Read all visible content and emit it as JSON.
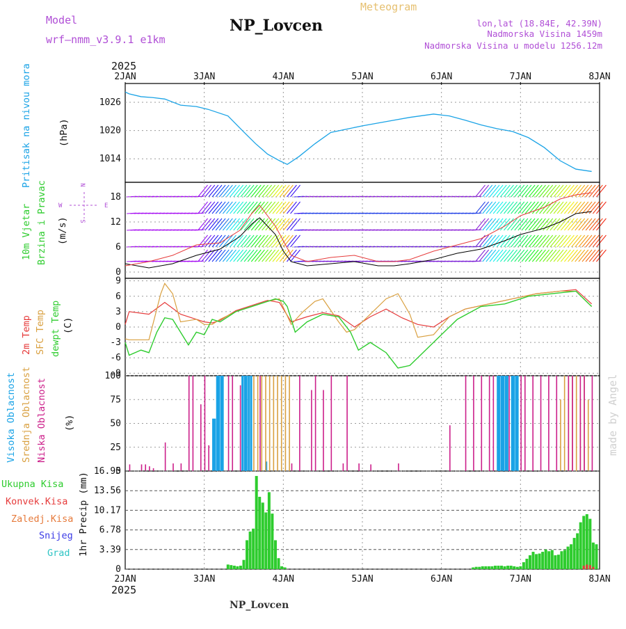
{
  "header": {
    "model_label": "Model",
    "model_name": "wrf–nmm_v3.9.1  e1km",
    "station": "NP_Lovcen",
    "product": "Meteogram",
    "coords": "lon,lat (18.84E, 42.39N)",
    "altitude": "Nadmorska Visina 1459m",
    "model_altitude": "Nadmorska Visina u modelu 1256.12m",
    "footer_station": "NP_Lovcen",
    "watermark": "made by Angel"
  },
  "time_axis": {
    "year": "2025",
    "ticks": [
      "2JAN",
      "3JAN",
      "4JAN",
      "5JAN",
      "6JAN",
      "7JAN",
      "8JAN"
    ]
  },
  "colors": {
    "pressure": "#1aa3e6",
    "temp2m": "#e63b3b",
    "sfc_temp": "#d9a040",
    "dewpt": "#2ecc2e",
    "cloud_high": "#1aa3e6",
    "cloud_mid": "#d9a040",
    "cloud_low": "#cc1f8a",
    "precip_total": "#2ecc2e",
    "precip_conv": "#e63b3b",
    "snow": "#3b3be6",
    "grad": "#2ec4c4",
    "model_text": "#b04fd6",
    "meteogram_text": "#e6c070",
    "wind_speed": "#000000",
    "gust": "#e63b3b"
  },
  "chart_data": [
    {
      "id": "pressure",
      "type": "line",
      "labels": [
        "Pritisak na nivou mora",
        "(hPa)"
      ],
      "yticks": [
        1014,
        1020,
        1026
      ],
      "ylim": [
        1009,
        1030
      ],
      "x": [
        0,
        0.05,
        0.2,
        0.35,
        0.5,
        0.7,
        0.9,
        1.05,
        1.3,
        1.5,
        1.65,
        1.8,
        1.95,
        2.05,
        2.2,
        2.4,
        2.6,
        2.8,
        3.0,
        3.3,
        3.6,
        3.9,
        4.1,
        4.3,
        4.5,
        4.7,
        4.9,
        5.1,
        5.3,
        5.5,
        5.7,
        5.9
      ],
      "values": [
        1028.2,
        1027.8,
        1027.2,
        1027.0,
        1026.7,
        1025.4,
        1025.1,
        1024.5,
        1023.1,
        1019.7,
        1017.2,
        1015.0,
        1013.6,
        1012.8,
        1014.5,
        1017.2,
        1019.6,
        1020.3,
        1021.0,
        1021.9,
        1022.8,
        1023.5,
        1023.1,
        1022.2,
        1021.2,
        1020.4,
        1019.8,
        1018.5,
        1016.4,
        1013.6,
        1011.8,
        1011.3
      ]
    },
    {
      "id": "wind",
      "type": "line",
      "labels": [
        "10m Vjetar",
        "Brzina i Pravac",
        "(m/s)"
      ],
      "compass": {
        "north": "N",
        "south": "S",
        "east": "E",
        "west": "W"
      },
      "yticks": [
        0,
        6,
        12,
        18
      ],
      "ylim": [
        -1.5,
        21.5
      ],
      "series": [
        {
          "x": [
            0,
            0.3,
            0.6,
            0.9,
            1.2,
            1.45,
            1.6,
            1.7,
            1.8,
            1.9,
            2.0,
            2.1,
            2.3,
            2.6,
            2.9,
            3.2,
            3.4,
            3.6,
            3.9,
            4.2,
            4.5,
            4.8,
            5.0,
            5.3,
            5.5,
            5.7,
            5.9
          ],
          "values": [
            2.0,
            1.0,
            2.0,
            4.0,
            5.5,
            8.5,
            11.5,
            13.0,
            11.0,
            9.0,
            5.0,
            2.5,
            1.5,
            2.0,
            2.5,
            1.5,
            1.5,
            2.0,
            3.0,
            4.5,
            5.5,
            7.5,
            9.0,
            10.5,
            12.0,
            14.0,
            14.5
          ]
        },
        {
          "x": [
            0,
            0.3,
            0.6,
            0.9,
            1.2,
            1.45,
            1.6,
            1.7,
            1.8,
            1.9,
            2.0,
            2.1,
            2.3,
            2.6,
            2.9,
            3.2,
            3.4,
            3.6,
            3.9,
            4.2,
            4.5,
            4.8,
            5.0,
            5.3,
            5.5,
            5.7,
            5.9
          ],
          "values": [
            1.5,
            2.5,
            4.0,
            6.5,
            7.0,
            10.0,
            14.0,
            16.0,
            13.5,
            11.0,
            7.5,
            4.0,
            2.5,
            3.5,
            4.0,
            2.5,
            2.5,
            3.0,
            5.0,
            6.5,
            8.0,
            11.0,
            13.5,
            15.5,
            17.5,
            18.5,
            19.0
          ]
        }
      ]
    },
    {
      "id": "temperature",
      "type": "line",
      "labels": [
        "2m Temp",
        "SFC Temp",
        "dewpt Temp",
        "(C)"
      ],
      "yticks": [
        -9,
        -6,
        -3,
        0,
        3,
        6,
        9
      ],
      "ylim": [
        -9.5,
        9.5
      ],
      "series": [
        {
          "x": [
            0,
            0.05,
            0.3,
            0.5,
            0.7,
            0.9,
            1.0,
            1.1,
            1.2,
            1.4,
            1.6,
            1.8,
            1.95,
            2.1,
            2.3,
            2.5,
            2.7,
            2.9,
            3.1,
            3.3,
            3.5,
            3.7,
            3.9,
            4.1,
            4.3,
            4.6,
            4.9,
            5.2,
            5.5,
            5.7,
            5.9
          ],
          "values": [
            0.5,
            3.0,
            2.5,
            4.8,
            2.5,
            1.5,
            1.0,
            0.8,
            1.3,
            3.2,
            4.2,
            5.2,
            4.8,
            1.0,
            2.0,
            2.8,
            2.2,
            0.0,
            2.0,
            3.5,
            1.8,
            0.5,
            0.0,
            2.0,
            3.5,
            4.5,
            5.5,
            6.5,
            7.0,
            7.3,
            4.5
          ]
        },
        {
          "x": [
            0,
            0.05,
            0.3,
            0.45,
            0.5,
            0.6,
            0.7,
            0.9,
            1.0,
            1.1,
            1.2,
            1.4,
            1.6,
            1.8,
            1.95,
            2.1,
            2.25,
            2.4,
            2.5,
            2.7,
            2.8,
            2.9,
            3.1,
            3.3,
            3.45,
            3.6,
            3.7,
            3.9,
            4.1,
            4.3,
            4.6,
            4.9,
            5.2,
            5.5,
            5.7,
            5.9
          ],
          "values": [
            -2.3,
            -2.5,
            -2.5,
            6.5,
            8.5,
            6.5,
            1.0,
            1.5,
            0.5,
            0.5,
            1.5,
            3.0,
            4.0,
            5.0,
            5.5,
            0.5,
            3.0,
            5.0,
            5.5,
            1.0,
            -1.0,
            -0.5,
            2.5,
            5.5,
            6.5,
            2.5,
            -2.0,
            -1.5,
            2.0,
            3.5,
            4.5,
            5.5,
            6.5,
            7.0,
            7.0,
            4.0
          ]
        },
        {
          "x": [
            0,
            0.05,
            0.2,
            0.3,
            0.4,
            0.5,
            0.6,
            0.7,
            0.8,
            0.9,
            1.0,
            1.1,
            1.2,
            1.4,
            1.6,
            1.8,
            1.9,
            2.0,
            2.05,
            2.15,
            2.3,
            2.5,
            2.7,
            2.85,
            2.95,
            3.1,
            3.3,
            3.45,
            3.6,
            3.8,
            4.0,
            4.2,
            4.5,
            4.8,
            5.1,
            5.4,
            5.7,
            5.9
          ],
          "values": [
            -3.0,
            -5.5,
            -4.5,
            -5.0,
            -1.0,
            1.8,
            1.5,
            -1.0,
            -3.5,
            -1.0,
            -1.5,
            1.5,
            1.0,
            3.0,
            4.0,
            5.0,
            5.5,
            5.0,
            4.0,
            -1.0,
            1.0,
            2.5,
            2.0,
            -1.0,
            -4.5,
            -3.0,
            -5.0,
            -8.0,
            -7.5,
            -4.5,
            -1.5,
            1.5,
            4.0,
            4.5,
            6.0,
            6.5,
            7.0,
            4.0
          ]
        }
      ]
    },
    {
      "id": "clouds",
      "type": "bar",
      "labels": [
        "Visoka Oblacnost",
        "Srednja Oblacnost",
        "Niska Oblacnost",
        "(%)"
      ],
      "yticks": [
        0,
        25,
        50,
        75,
        100
      ],
      "ylim": [
        0,
        100
      ],
      "series": [
        {
          "x": [
            1.1,
            1.12,
            1.15,
            1.17,
            1.2,
            1.22,
            1.47,
            1.5,
            1.52,
            1.55,
            1.58,
            1.77,
            4.7,
            4.72,
            4.75,
            4.77,
            4.8,
            4.82,
            4.88,
            4.9,
            4.93,
            4.95
          ],
          "values": [
            55,
            55,
            100,
            100,
            100,
            100,
            100,
            100,
            100,
            100,
            100,
            10,
            100,
            100,
            100,
            100,
            100,
            100,
            100,
            100,
            100,
            100
          ]
        },
        {
          "x": [
            1.62,
            1.67,
            1.72,
            1.77,
            1.82,
            1.87,
            1.92,
            1.97,
            2.02,
            2.07,
            5.5,
            5.55,
            5.6,
            5.65,
            5.7,
            5.75,
            5.8,
            5.85
          ],
          "values": [
            100,
            100,
            100,
            100,
            100,
            100,
            100,
            100,
            100,
            100,
            75,
            100,
            100,
            100,
            100,
            75,
            100,
            75
          ]
        },
        {
          "x": [
            0.05,
            0.2,
            0.25,
            0.3,
            0.35,
            0.5,
            0.6,
            0.7,
            0.8,
            0.85,
            0.95,
            1.0,
            1.05,
            1.3,
            1.35,
            1.45,
            1.7,
            2.1,
            2.2,
            2.35,
            2.4,
            2.5,
            2.6,
            2.75,
            2.8,
            2.95,
            3.1,
            3.45,
            4.1,
            4.3,
            4.4,
            4.5,
            4.6,
            4.65,
            4.85,
            5.0,
            5.05,
            5.15,
            5.25,
            5.35,
            5.45,
            5.6,
            5.65,
            5.75,
            5.8,
            5.9
          ],
          "values": [
            7,
            7,
            7,
            5,
            3,
            30,
            8,
            8,
            100,
            100,
            70,
            100,
            27,
            100,
            100,
            90,
            100,
            8,
            100,
            85,
            100,
            85,
            100,
            8,
            100,
            8,
            7,
            8,
            48,
            100,
            100,
            100,
            100,
            100,
            100,
            100,
            100,
            100,
            100,
            100,
            100,
            100,
            100,
            100,
            100,
            100
          ]
        }
      ]
    },
    {
      "id": "precip",
      "type": "bar",
      "labels": [
        "Ukupna Kisa",
        "Konvek.Kisa",
        "Zaledj.Kisa",
        "Snijeg",
        "Grad",
        "1hr Precip (mm)"
      ],
      "yticks": [
        "0",
        "3.39",
        "6.78",
        "10.17",
        "13.56",
        "16.95"
      ],
      "ylim": [
        0,
        16.95
      ],
      "series": [
        {
          "x": [
            1.3,
            1.34,
            1.38,
            1.42,
            1.46,
            1.5,
            1.54,
            1.58,
            1.62,
            1.66,
            1.7,
            1.74,
            1.78,
            1.82,
            1.86,
            1.9,
            1.94,
            1.98,
            2.02,
            4.4,
            4.44,
            4.48,
            4.52,
            4.56,
            4.6,
            4.64,
            4.68,
            4.72,
            4.76,
            4.8,
            4.84,
            4.88,
            4.92,
            4.96,
            5.0,
            5.04,
            5.08,
            5.12,
            5.16,
            5.2,
            5.24,
            5.28,
            5.32,
            5.36,
            5.4,
            5.44,
            5.48,
            5.52,
            5.56,
            5.6,
            5.64,
            5.68,
            5.72,
            5.76,
            5.8,
            5.84,
            5.88,
            5.92,
            5.96
          ],
          "values": [
            0.8,
            0.7,
            0.6,
            0.5,
            0.6,
            1.6,
            5.0,
            6.5,
            7.0,
            16.1,
            12.5,
            11.5,
            9.8,
            13.3,
            9.6,
            5.0,
            1.9,
            0.5,
            0.3,
            0.3,
            0.4,
            0.4,
            0.5,
            0.5,
            0.5,
            0.5,
            0.6,
            0.6,
            0.6,
            0.5,
            0.6,
            0.6,
            0.5,
            0.4,
            0.5,
            1.2,
            1.8,
            2.4,
            3.0,
            2.6,
            2.7,
            3.0,
            3.4,
            3.1,
            3.3,
            2.4,
            2.5,
            3.1,
            3.3,
            3.9,
            4.3,
            5.4,
            6.2,
            8.1,
            9.2,
            9.5,
            8.7,
            4.6,
            4.3
          ]
        },
        {
          "x": [
            5.8,
            5.84,
            5.88,
            5.92
          ],
          "values": [
            0.6,
            0.8,
            0.7,
            0.4
          ]
        }
      ]
    }
  ]
}
